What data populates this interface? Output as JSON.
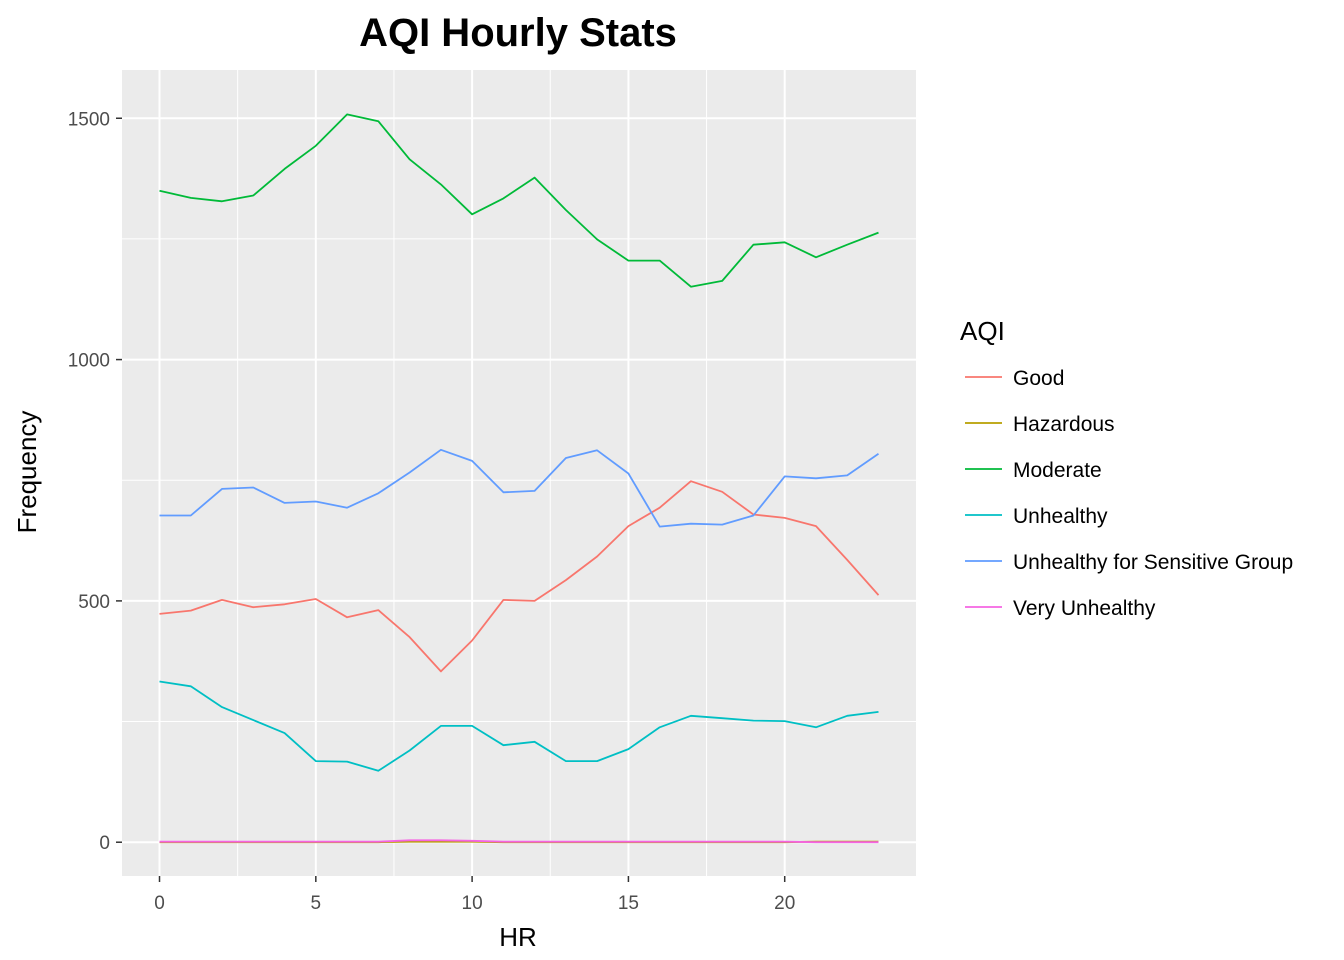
{
  "chart_data": {
    "type": "line",
    "title": "AQI Hourly Stats",
    "xlabel": "HR",
    "ylabel": "Frequency",
    "xlim": [
      -1.2,
      24.2
    ],
    "ylim": [
      -70,
      1600
    ],
    "xticks": [
      0,
      5,
      10,
      15,
      20
    ],
    "yticks": [
      0,
      500,
      1000,
      1500
    ],
    "grid": true,
    "panel_background": "#ebebeb",
    "legend": {
      "title": "AQI",
      "placement": "right"
    },
    "x": [
      0,
      1,
      2,
      3,
      4,
      5,
      6,
      7,
      8,
      9,
      10,
      11,
      12,
      13,
      14,
      15,
      16,
      17,
      18,
      19,
      20,
      21,
      22,
      23
    ],
    "series": [
      {
        "name": "Good",
        "color": "#F8766D",
        "values": [
          473,
          480,
          502,
          487,
          493,
          504,
          466,
          481,
          425,
          354,
          418,
          502,
          500,
          543,
          592,
          655,
          693,
          748,
          726,
          679,
          672,
          655,
          585,
          512
        ]
      },
      {
        "name": "Hazardous",
        "color": "#B79F00",
        "values": [
          0,
          0,
          0,
          0,
          0,
          0,
          0,
          0,
          1,
          1,
          1,
          0,
          0,
          0,
          0,
          0,
          0,
          0,
          0,
          0,
          0,
          1,
          1,
          1
        ]
      },
      {
        "name": "Moderate",
        "color": "#00BA38",
        "values": [
          1350,
          1335,
          1328,
          1340,
          1395,
          1443,
          1508,
          1494,
          1415,
          1363,
          1301,
          1334,
          1377,
          1310,
          1249,
          1205,
          1205,
          1151,
          1163,
          1238,
          1243,
          1212,
          1238,
          1263
        ]
      },
      {
        "name": "Unhealthy",
        "color": "#00BFC4",
        "values": [
          333,
          323,
          280,
          253,
          226,
          168,
          167,
          148,
          190,
          241,
          241,
          201,
          208,
          168,
          168,
          193,
          238,
          262,
          257,
          252,
          251,
          238,
          262,
          270
        ]
      },
      {
        "name": "Unhealthy for Sensitive Group",
        "color": "#619CFF",
        "values": [
          677,
          677,
          732,
          735,
          703,
          706,
          693,
          723,
          766,
          813,
          790,
          725,
          728,
          796,
          812,
          764,
          654,
          660,
          658,
          677,
          758,
          754,
          760,
          805
        ]
      },
      {
        "name": "Very Unhealthy",
        "color": "#F564E3",
        "values": [
          1,
          1,
          1,
          1,
          1,
          1,
          1,
          1,
          4,
          4,
          3,
          1,
          1,
          1,
          1,
          1,
          1,
          1,
          1,
          1,
          1,
          0,
          0,
          0
        ]
      }
    ]
  }
}
